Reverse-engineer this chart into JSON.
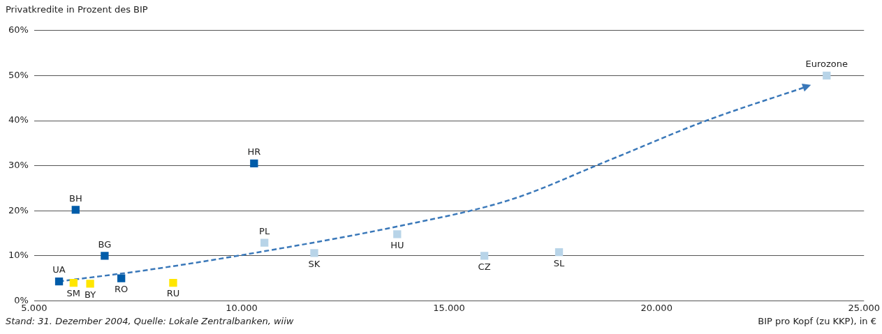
{
  "chart_data": {
    "type": "scatter",
    "ylabel": "Privatkredite in Prozent des BIP",
    "xlabel": "BIP pro Kopf (zu KKP), in €",
    "marker": "square",
    "grid": "y",
    "xlim": [
      5000,
      25000
    ],
    "xticks": [
      {
        "value": 5000,
        "label": "5.000"
      },
      {
        "value": 10000,
        "label": "10.000"
      },
      {
        "value": 15000,
        "label": "15.000"
      },
      {
        "value": 20000,
        "label": "20.000"
      },
      {
        "value": 25000,
        "label": "25.000"
      }
    ],
    "ylim": [
      0,
      60
    ],
    "yticks": [
      {
        "value": 0,
        "label": "0%"
      },
      {
        "value": 10,
        "label": "10%"
      },
      {
        "value": 20,
        "label": "20%"
      },
      {
        "value": 30,
        "label": "30%"
      },
      {
        "value": 40,
        "label": "40%"
      },
      {
        "value": 50,
        "label": "50%"
      },
      {
        "value": 60,
        "label": "60%"
      }
    ],
    "series": [
      {
        "color": "#005ca9",
        "x": [
          5600,
          6000,
          6700,
          7100,
          10300
        ],
        "values": [
          4.3,
          20.2,
          10,
          5,
          30.5
        ]
      },
      {
        "color": "#ffe600",
        "x": [
          5950,
          6350,
          8350
        ],
        "values": [
          4,
          3.8,
          4
        ]
      },
      {
        "color": "#b8d4e8",
        "x": [
          10550,
          11750,
          13750,
          15850,
          17650,
          24100
        ],
        "values": [
          12.9,
          10.6,
          14.8,
          10,
          10.8,
          50
        ]
      },
      {
        "type": "line",
        "line_style": "dashed",
        "marker": "none",
        "color": "#3a78b9",
        "x": [
          5600,
          7700,
          10100,
          13800,
          16500,
          18800,
          21200,
          23600
        ],
        "values": [
          4.3,
          6.8,
          10.3,
          16.6,
          22.5,
          31,
          40,
          47.5
        ]
      }
    ],
    "annotations": [
      {
        "text": "UA",
        "x": 5600,
        "y": 4.3
      },
      {
        "text": "BH",
        "x": 6000,
        "y": 20.2
      },
      {
        "text": "BG",
        "x": 6700,
        "y": 10
      },
      {
        "text": "RO",
        "x": 7100,
        "y": 5
      },
      {
        "text": "HR",
        "x": 10300,
        "y": 30.5
      },
      {
        "text": "SM",
        "x": 5950,
        "y": 4
      },
      {
        "text": "BY",
        "x": 6350,
        "y": 3.8
      },
      {
        "text": "RU",
        "x": 8350,
        "y": 4
      },
      {
        "text": "PL",
        "x": 10550,
        "y": 12.9
      },
      {
        "text": "SK",
        "x": 11750,
        "y": 10.6
      },
      {
        "text": "HU",
        "x": 13750,
        "y": 14.8
      },
      {
        "text": "CZ",
        "x": 15850,
        "y": 10
      },
      {
        "text": "SL",
        "x": 17650,
        "y": 10.8
      },
      {
        "text": "Eurozone",
        "x": 24100,
        "y": 50
      },
      "Stand: 31. Dezember 2004, Quelle: Lokale Zentralbanken, wiiw"
    ]
  }
}
